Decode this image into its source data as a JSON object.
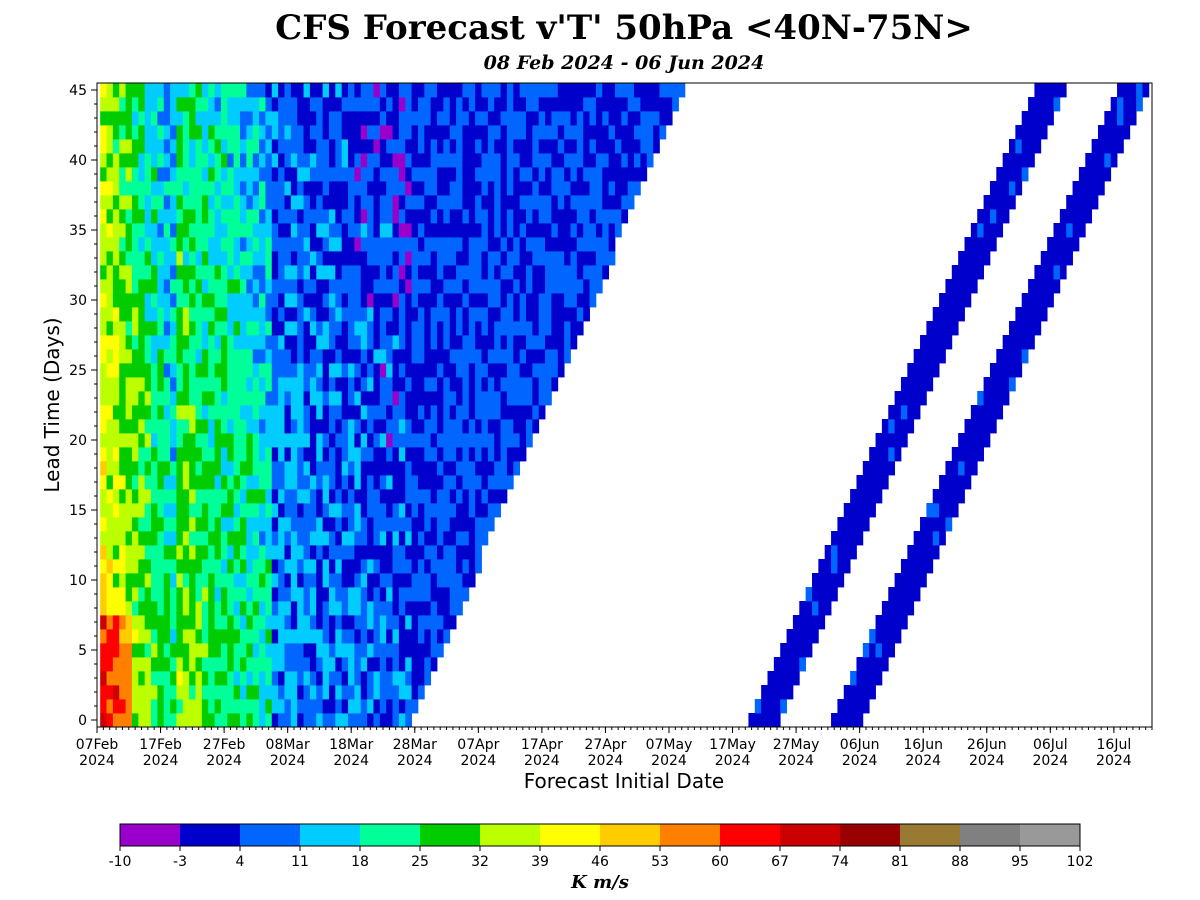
{
  "chart_data": {
    "type": "heatmap",
    "title": "CFS Forecast v'T' 50hPa <40N-75N>",
    "subtitle": "08 Feb 2024 - 06 Jun 2024",
    "xlabel": "Forecast Initial Date",
    "ylabel": "Lead Time (Days)",
    "x_range": [
      "2024-02-07",
      "2024-07-22"
    ],
    "ylim": [
      -0.5,
      45.5
    ],
    "x_ticks": [
      {
        "date": "2024-02-07",
        "label": "07Feb",
        "year": "2024"
      },
      {
        "date": "2024-02-17",
        "label": "17Feb",
        "year": "2024"
      },
      {
        "date": "2024-02-27",
        "label": "27Feb",
        "year": "2024"
      },
      {
        "date": "2024-03-08",
        "label": "08Mar",
        "year": "2024"
      },
      {
        "date": "2024-03-18",
        "label": "18Mar",
        "year": "2024"
      },
      {
        "date": "2024-03-28",
        "label": "28Mar",
        "year": "2024"
      },
      {
        "date": "2024-04-07",
        "label": "07Apr",
        "year": "2024"
      },
      {
        "date": "2024-04-17",
        "label": "17Apr",
        "year": "2024"
      },
      {
        "date": "2024-04-27",
        "label": "27Apr",
        "year": "2024"
      },
      {
        "date": "2024-05-07",
        "label": "07May",
        "year": "2024"
      },
      {
        "date": "2024-05-17",
        "label": "17May",
        "year": "2024"
      },
      {
        "date": "2024-05-27",
        "label": "27May",
        "year": "2024"
      },
      {
        "date": "2024-06-06",
        "label": "06Jun",
        "year": "2024"
      },
      {
        "date": "2024-06-16",
        "label": "16Jun",
        "year": "2024"
      },
      {
        "date": "2024-06-26",
        "label": "26Jun",
        "year": "2024"
      },
      {
        "date": "2024-07-06",
        "label": "06Jul",
        "year": "2024"
      },
      {
        "date": "2024-07-16",
        "label": "16Jul",
        "year": "2024"
      }
    ],
    "y_ticks": [
      0,
      5,
      10,
      15,
      20,
      25,
      30,
      35,
      40,
      45
    ],
    "cells": {
      "init_first": "2024-02-08",
      "init_last_full": "2024-03-27",
      "lead_days": [
        0,
        45
      ],
      "strips": [
        {
          "init_start": "2024-05-20",
          "init_end": "2024-05-24",
          "value": 0
        },
        {
          "init_start": "2024-06-02",
          "init_end": "2024-06-06",
          "value": 0
        }
      ]
    },
    "colorbar": {
      "label": "K m/s",
      "boundaries": [
        -10,
        -3,
        4,
        11,
        18,
        25,
        32,
        39,
        46,
        53,
        60,
        67,
        74,
        81,
        88,
        95,
        102
      ],
      "colors": [
        "#9900cc",
        "#0000cc",
        "#0066ff",
        "#00ccff",
        "#00ff99",
        "#00cc00",
        "#bbff00",
        "#ffff00",
        "#ffcc00",
        "#ff7f00",
        "#ff0000",
        "#cc0000",
        "#990000",
        "#997a33",
        "#808080",
        "#999999"
      ]
    }
  }
}
